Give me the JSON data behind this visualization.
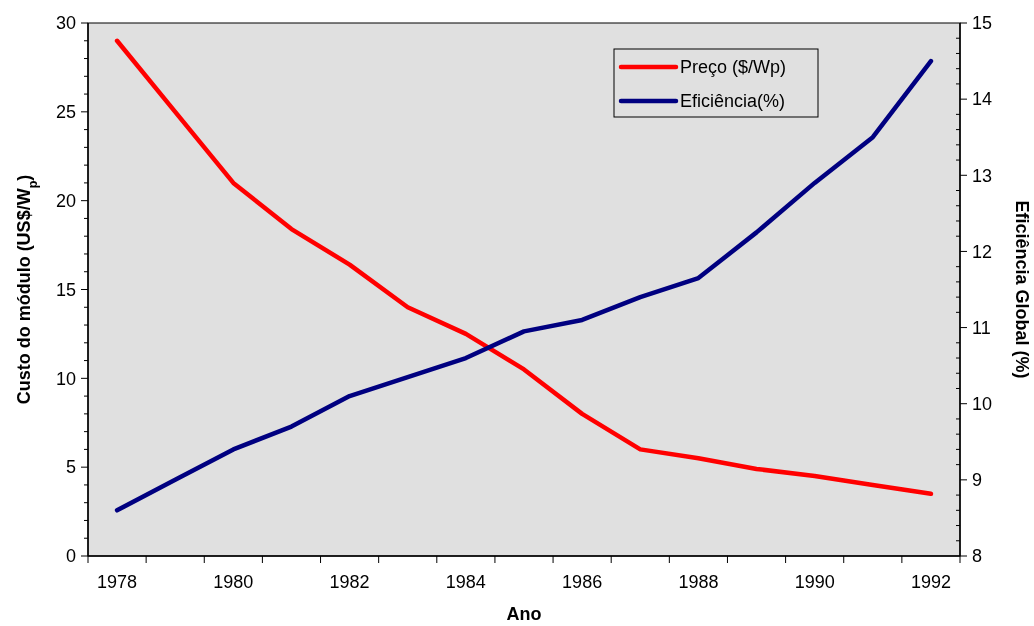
{
  "chart_data": {
    "type": "line",
    "xlabel": "Ano",
    "ylabel": "Custo do módulo (US$/W$_{p}$)",
    "y2label": "Eficiência Global (%)",
    "categories": [
      "1978",
      null,
      "1980",
      null,
      "1982",
      null,
      "1984",
      null,
      "1986",
      null,
      "1988",
      null,
      "1990",
      null,
      "1992"
    ],
    "series": [
      {
        "name": "Preço ($/Wp)",
        "color": "#ff0000",
        "values": [
          29,
          25,
          21,
          18.4,
          16.4,
          14,
          12.5,
          10.5,
          8,
          6,
          5.5,
          4.9,
          4.5,
          4,
          3.5
        ]
      },
      {
        "name": "Eficiência(%)",
        "color": "#000080",
        "axis": "y2",
        "values": [
          8.6,
          9.0,
          9.4,
          9.7,
          10.1,
          10.35,
          10.6,
          10.95,
          11.1,
          11.4,
          11.65,
          12.25,
          12.9,
          13.5,
          14.5
        ]
      }
    ],
    "ylim": [
      0,
      30
    ],
    "yticks": [
      0,
      {
        "value": 1,
        "label": null
      },
      {
        "value": 2,
        "label": null
      },
      {
        "value": 3,
        "label": null
      },
      {
        "value": 4,
        "label": null
      },
      5,
      {
        "value": 6,
        "label": null
      },
      {
        "value": 7,
        "label": null
      },
      {
        "value": 8,
        "label": null
      },
      {
        "value": 9,
        "label": null
      },
      10,
      {
        "value": 11,
        "label": null
      },
      {
        "value": 12,
        "label": null
      },
      {
        "value": 13,
        "label": null
      },
      {
        "value": 14,
        "label": null
      },
      15,
      {
        "value": 16,
        "label": null
      },
      {
        "value": 17,
        "label": null
      },
      {
        "value": 18,
        "label": null
      },
      {
        "value": 19,
        "label": null
      },
      20,
      {
        "value": 21,
        "label": null
      },
      {
        "value": 22,
        "label": null
      },
      {
        "value": 23,
        "label": null
      },
      {
        "value": 24,
        "label": null
      },
      25,
      {
        "value": 26,
        "label": null
      },
      {
        "value": 27,
        "label": null
      },
      {
        "value": 28,
        "label": null
      },
      {
        "value": 29,
        "label": null
      },
      30
    ],
    "y2lim": [
      8,
      15
    ],
    "y2ticks": [
      8,
      {
        "value": 8.2,
        "label": null
      },
      {
        "value": 8.4,
        "label": null
      },
      {
        "value": 8.6,
        "label": null
      },
      {
        "value": 8.8,
        "label": null
      },
      9,
      {
        "value": 9.2,
        "label": null
      },
      {
        "value": 9.4,
        "label": null
      },
      {
        "value": 9.6,
        "label": null
      },
      {
        "value": 9.8,
        "label": null
      },
      10,
      {
        "value": 10.2,
        "label": null
      },
      {
        "value": 10.4,
        "label": null
      },
      {
        "value": 10.6,
        "label": null
      },
      {
        "value": 10.8,
        "label": null
      },
      11,
      {
        "value": 11.2,
        "label": null
      },
      {
        "value": 11.4,
        "label": null
      },
      {
        "value": 11.6,
        "label": null
      },
      {
        "value": 11.8,
        "label": null
      },
      12,
      {
        "value": 12.2,
        "label": null
      },
      {
        "value": 12.4,
        "label": null
      },
      {
        "value": 12.6,
        "label": null
      },
      {
        "value": 12.8,
        "label": null
      },
      13,
      {
        "value": 13.2,
        "label": null
      },
      {
        "value": 13.4,
        "label": null
      },
      {
        "value": 13.6,
        "label": null
      },
      {
        "value": 13.8,
        "label": null
      },
      14,
      {
        "value": 14.2,
        "label": null
      },
      {
        "value": 14.4,
        "label": null
      },
      {
        "value": 14.6,
        "label": null
      },
      {
        "value": 14.8,
        "label": null
      },
      15
    ],
    "legend": "top right",
    "grid": false,
    "marker": "none",
    "line_style": "solid"
  }
}
